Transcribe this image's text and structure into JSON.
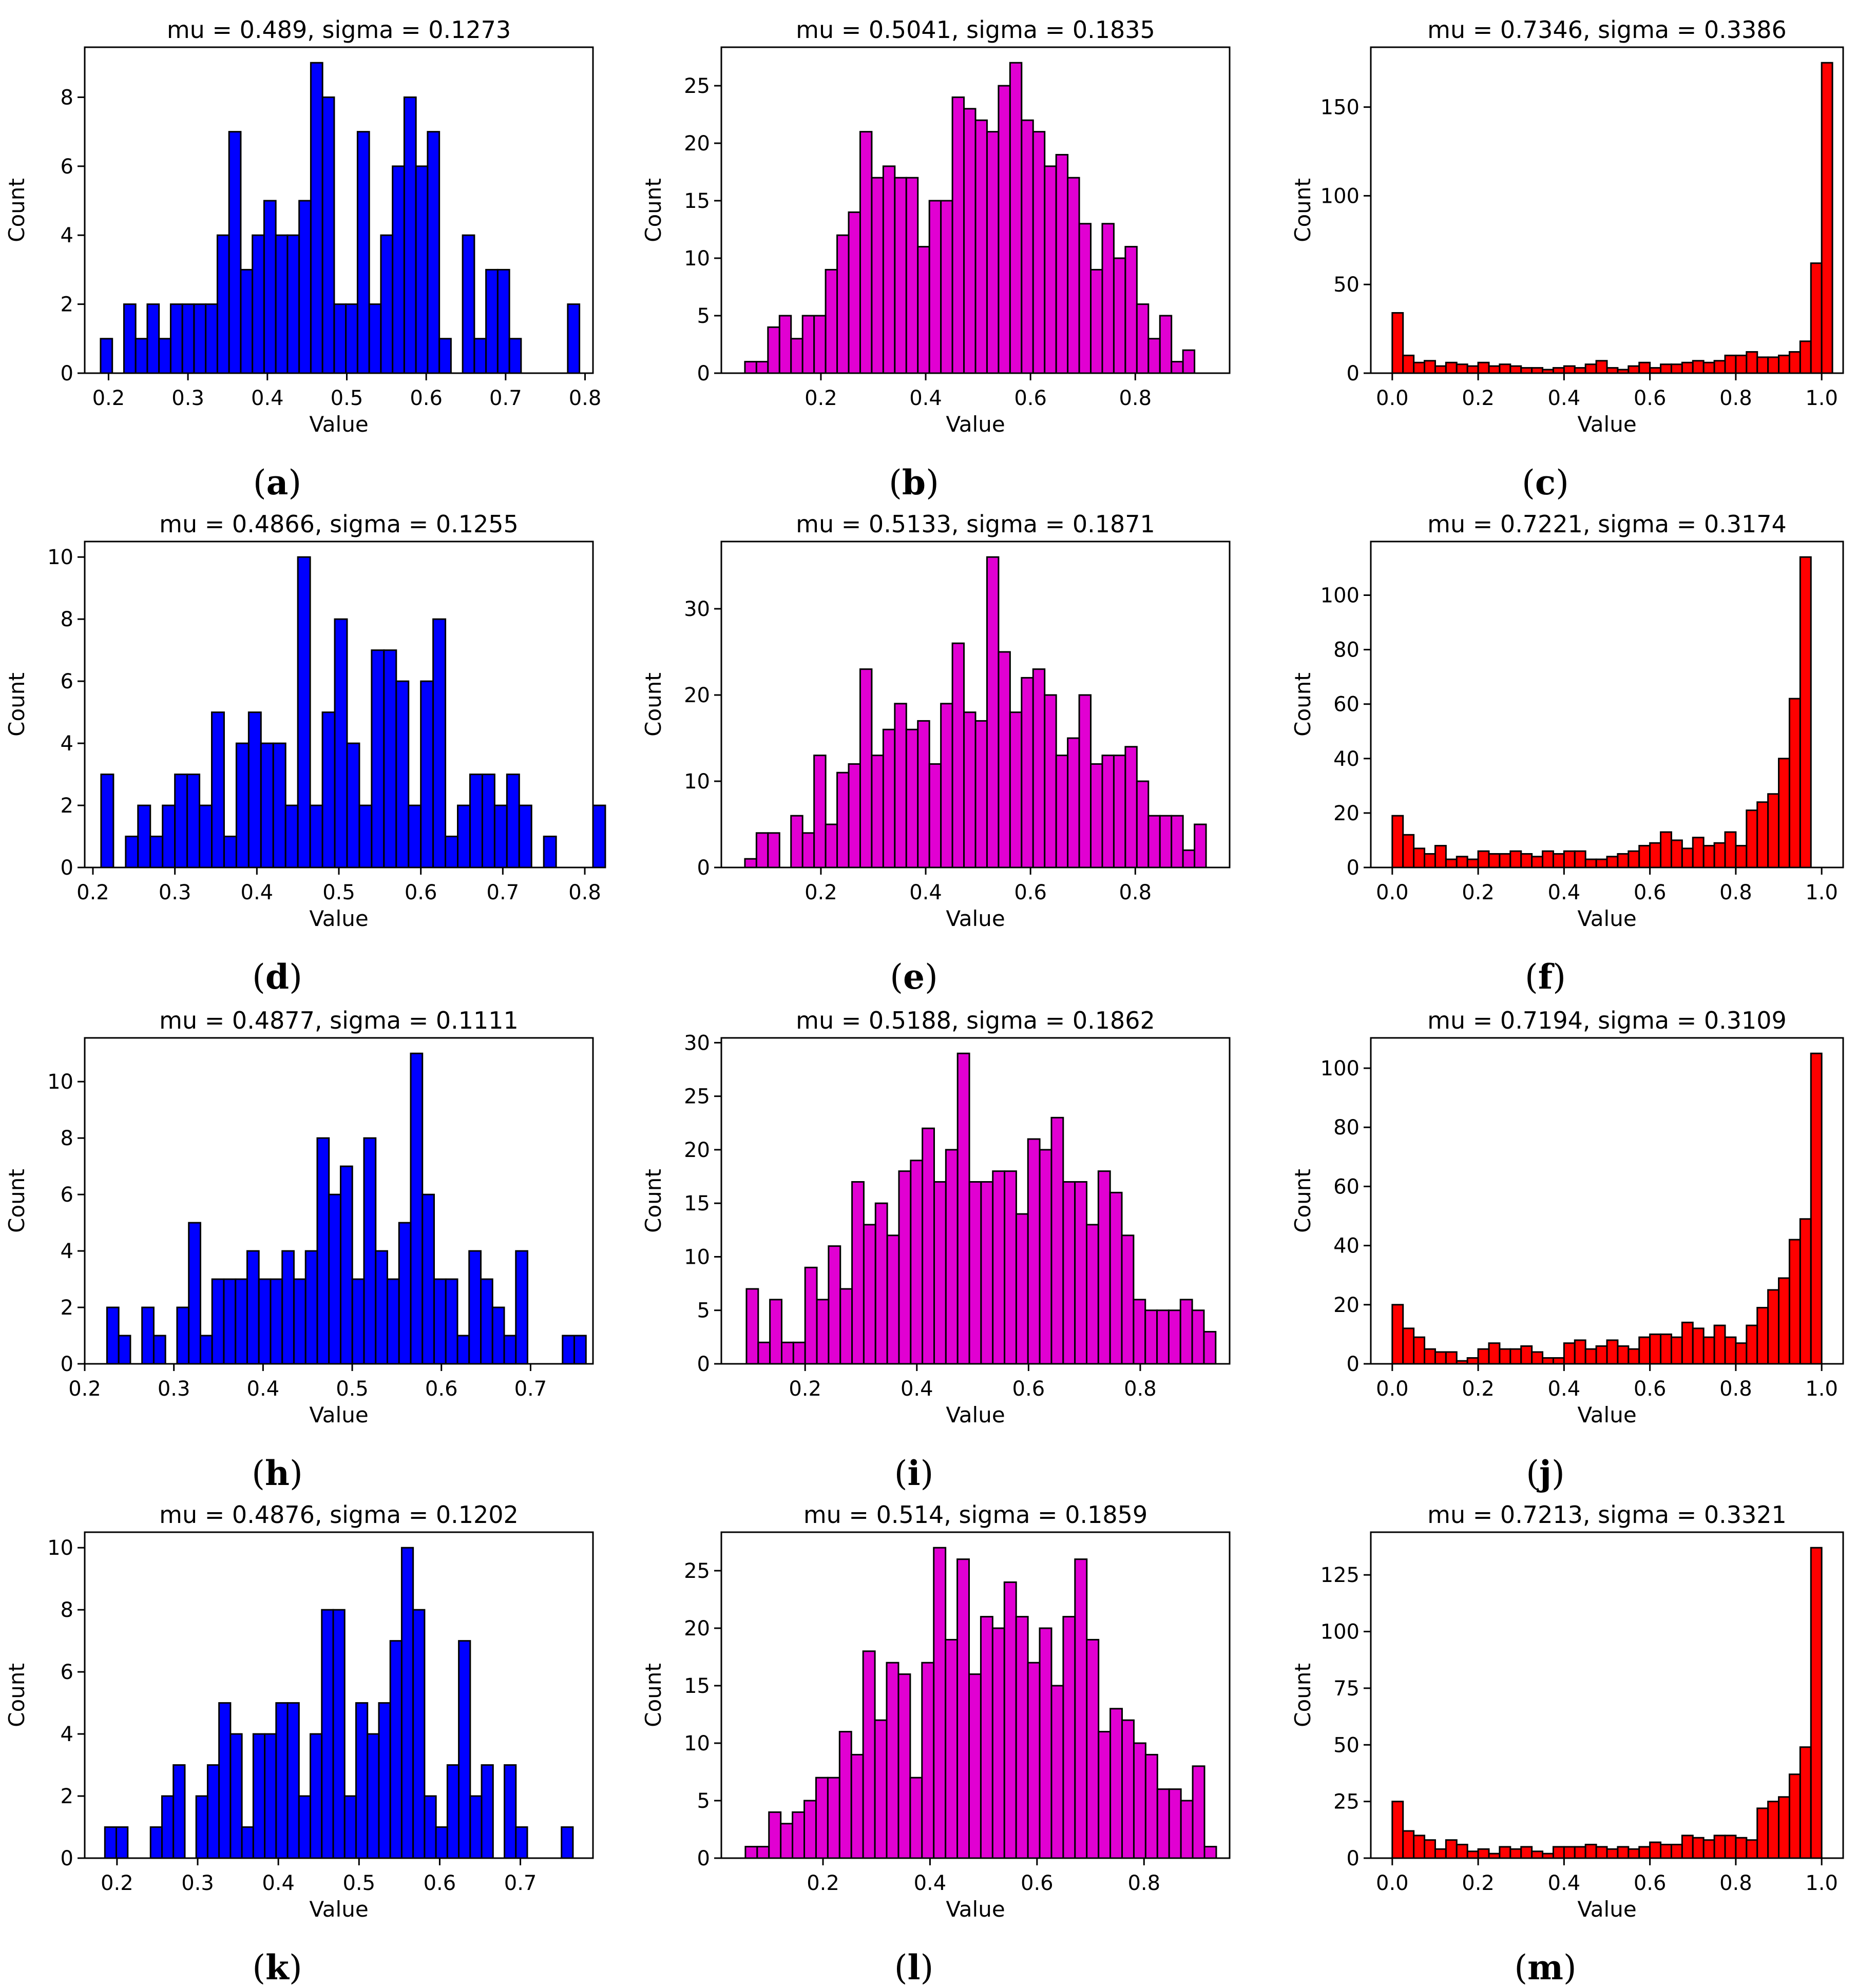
{
  "chart_data": [
    {
      "id": "a",
      "type": "bar",
      "caption_letter": "a",
      "title": "mu = 0.489, sigma = 0.1273",
      "xlabel": "Value",
      "ylabel": "Count",
      "color": "#0000ff",
      "xlim": [
        0.17,
        0.81
      ],
      "ylim": [
        0,
        9.45
      ],
      "bin_start": 0.19,
      "bin_width": 0.014706,
      "xticks": [
        0.2,
        0.3,
        0.4,
        0.5,
        0.6,
        0.7,
        0.8
      ],
      "xtick_labels": [
        "0.2",
        "0.3",
        "0.4",
        "0.5",
        "0.6",
        "0.7",
        "0.8"
      ],
      "yticks": [
        0,
        2,
        4,
        6,
        8
      ],
      "ytick_labels": [
        "0",
        "2",
        "4",
        "6",
        "8"
      ],
      "values": [
        1,
        0,
        2,
        1,
        2,
        1,
        2,
        2,
        2,
        2,
        4,
        7,
        3,
        4,
        5,
        4,
        4,
        5,
        9,
        8,
        2,
        2,
        7,
        2,
        4,
        6,
        8,
        6,
        7,
        1,
        0,
        4,
        1,
        3,
        3,
        1,
        0,
        0,
        0,
        0,
        2
      ]
    },
    {
      "id": "b",
      "type": "bar",
      "caption_letter": "b",
      "title": "mu = 0.5041, sigma = 0.1835",
      "xlabel": "Value",
      "ylabel": "Count",
      "color": "#e100d2",
      "xlim": [
        0.01,
        0.98
      ],
      "ylim": [
        0,
        28.35
      ],
      "bin_start": 0.055,
      "bin_width": 0.022,
      "xticks": [
        0.2,
        0.4,
        0.6,
        0.8
      ],
      "xtick_labels": [
        "0.2",
        "0.4",
        "0.6",
        "0.8"
      ],
      "yticks": [
        0,
        5,
        10,
        15,
        20,
        25
      ],
      "ytick_labels": [
        "0",
        "5",
        "10",
        "15",
        "20",
        "25"
      ],
      "values": [
        1,
        1,
        4,
        5,
        3,
        5,
        5,
        9,
        12,
        14,
        21,
        17,
        18,
        17,
        17,
        11,
        15,
        15,
        24,
        23,
        22,
        21,
        25,
        27,
        22,
        21,
        18,
        19,
        17,
        13,
        9,
        13,
        10,
        11,
        6,
        3,
        5,
        1,
        2
      ]
    },
    {
      "id": "c",
      "type": "bar",
      "caption_letter": "c",
      "title": "mu = 0.7346, sigma = 0.3386",
      "xlabel": "Value",
      "ylabel": "Count",
      "color": "#ff0000",
      "xlim": [
        -0.05,
        1.05
      ],
      "ylim": [
        0,
        183.75
      ],
      "bin_start": 0.0,
      "bin_width": 0.025,
      "xticks": [
        0.0,
        0.2,
        0.4,
        0.6,
        0.8,
        1.0
      ],
      "xtick_labels": [
        "0.0",
        "0.2",
        "0.4",
        "0.6",
        "0.8",
        "1.0"
      ],
      "yticks": [
        0,
        50,
        100,
        150
      ],
      "ytick_labels": [
        "0",
        "50",
        "100",
        "150"
      ],
      "values": [
        34,
        10,
        6,
        7,
        4,
        6,
        5,
        4,
        6,
        4,
        5,
        4,
        3,
        3,
        2,
        3,
        4,
        3,
        5,
        7,
        3,
        2,
        4,
        6,
        3,
        5,
        5,
        6,
        7,
        6,
        7,
        10,
        10,
        12,
        9,
        9,
        10,
        12,
        18,
        62,
        175
      ]
    },
    {
      "id": "d",
      "type": "bar",
      "caption_letter": "d",
      "title": "mu = 0.4866, sigma = 0.1255",
      "xlabel": "Value",
      "ylabel": "Count",
      "color": "#0000ff",
      "xlim": [
        0.19,
        0.81
      ],
      "ylim": [
        0,
        10.5
      ],
      "bin_start": 0.21,
      "bin_width": 0.015,
      "xticks": [
        0.2,
        0.3,
        0.4,
        0.5,
        0.6,
        0.7,
        0.8
      ],
      "xtick_labels": [
        "0.2",
        "0.3",
        "0.4",
        "0.5",
        "0.6",
        "0.7",
        "0.8"
      ],
      "yticks": [
        0,
        2,
        4,
        6,
        8,
        10
      ],
      "ytick_labels": [
        "0",
        "2",
        "4",
        "6",
        "8",
        "10"
      ],
      "values": [
        3,
        0,
        1,
        2,
        1,
        2,
        3,
        3,
        2,
        5,
        1,
        4,
        5,
        4,
        4,
        2,
        10,
        2,
        5,
        8,
        4,
        2,
        7,
        7,
        6,
        2,
        6,
        8,
        1,
        2,
        3,
        3,
        2,
        3,
        2,
        0,
        1,
        0,
        0,
        0,
        2
      ]
    },
    {
      "id": "e",
      "type": "bar",
      "caption_letter": "e",
      "title": "mu = 0.5133, sigma = 0.1871",
      "xlabel": "Value",
      "ylabel": "Count",
      "color": "#e100d2",
      "xlim": [
        0.01,
        0.98
      ],
      "ylim": [
        0,
        37.8
      ],
      "bin_start": 0.055,
      "bin_width": 0.022,
      "xticks": [
        0.2,
        0.4,
        0.6,
        0.8
      ],
      "xtick_labels": [
        "0.2",
        "0.4",
        "0.6",
        "0.8"
      ],
      "yticks": [
        0,
        10,
        20,
        30
      ],
      "ytick_labels": [
        "0",
        "10",
        "20",
        "30"
      ],
      "values": [
        1,
        4,
        4,
        0,
        6,
        4,
        13,
        5,
        11,
        12,
        23,
        13,
        16,
        19,
        16,
        17,
        12,
        19,
        26,
        18,
        17,
        36,
        25,
        18,
        22,
        23,
        20,
        13,
        15,
        20,
        12,
        13,
        13,
        14,
        10,
        6,
        6,
        6,
        2,
        5
      ]
    },
    {
      "id": "f",
      "type": "bar",
      "caption_letter": "f",
      "title": "mu = 0.7221, sigma = 0.3174",
      "xlabel": "Value",
      "ylabel": "Count",
      "color": "#ff0000",
      "xlim": [
        -0.05,
        1.05
      ],
      "ylim": [
        0,
        119.7
      ],
      "bin_start": 0.0,
      "bin_width": 0.025,
      "xticks": [
        0.0,
        0.2,
        0.4,
        0.6,
        0.8,
        1.0
      ],
      "xtick_labels": [
        "0.0",
        "0.2",
        "0.4",
        "0.6",
        "0.8",
        "1.0"
      ],
      "yticks": [
        0,
        20,
        40,
        60,
        80,
        100
      ],
      "ytick_labels": [
        "0",
        "20",
        "40",
        "60",
        "80",
        "100"
      ],
      "values": [
        19,
        12,
        7,
        5,
        8,
        3,
        4,
        3,
        6,
        5,
        5,
        6,
        5,
        4,
        6,
        5,
        6,
        6,
        3,
        3,
        4,
        5,
        6,
        8,
        9,
        13,
        10,
        7,
        11,
        8,
        9,
        13,
        8,
        21,
        24,
        27,
        40,
        62,
        114
      ]
    },
    {
      "id": "h",
      "type": "bar",
      "caption_letter": "h",
      "title": "mu = 0.4877, sigma = 0.1111",
      "xlabel": "Value",
      "ylabel": "Count",
      "color": "#0000ff",
      "xlim": [
        0.2,
        0.77
      ],
      "ylim": [
        0,
        11.55
      ],
      "bin_start": 0.225,
      "bin_width": 0.0131,
      "xticks": [
        0.2,
        0.3,
        0.4,
        0.5,
        0.6,
        0.7
      ],
      "xtick_labels": [
        "0.2",
        "0.3",
        "0.4",
        "0.5",
        "0.6",
        "0.7"
      ],
      "yticks": [
        0,
        2,
        4,
        6,
        8,
        10
      ],
      "ytick_labels": [
        "0",
        "2",
        "4",
        "6",
        "8",
        "10"
      ],
      "values": [
        2,
        1,
        0,
        2,
        1,
        0,
        2,
        5,
        1,
        3,
        3,
        3,
        4,
        3,
        3,
        4,
        3,
        4,
        8,
        6,
        7,
        3,
        8,
        4,
        3,
        5,
        11,
        6,
        3,
        3,
        1,
        4,
        3,
        2,
        1,
        4,
        0,
        0,
        0,
        1,
        1
      ]
    },
    {
      "id": "i",
      "type": "bar",
      "caption_letter": "i",
      "title": "mu = 0.5188, sigma = 0.1862",
      "xlabel": "Value",
      "ylabel": "Count",
      "color": "#e100d2",
      "xlim": [
        0.05,
        0.96
      ],
      "ylim": [
        0,
        30.45
      ],
      "bin_start": 0.095,
      "bin_width": 0.021,
      "xticks": [
        0.2,
        0.4,
        0.6,
        0.8
      ],
      "xtick_labels": [
        "0.2",
        "0.4",
        "0.6",
        "0.8"
      ],
      "yticks": [
        0,
        5,
        10,
        15,
        20,
        25,
        30
      ],
      "ytick_labels": [
        "0",
        "5",
        "10",
        "15",
        "20",
        "25",
        "30"
      ],
      "values": [
        7,
        2,
        6,
        2,
        2,
        9,
        6,
        11,
        7,
        17,
        13,
        15,
        12,
        18,
        19,
        22,
        17,
        20,
        29,
        17,
        17,
        18,
        18,
        14,
        21,
        20,
        23,
        17,
        17,
        13,
        18,
        16,
        12,
        6,
        5,
        5,
        5,
        6,
        5,
        3
      ]
    },
    {
      "id": "j",
      "type": "bar",
      "caption_letter": "j",
      "title": "mu = 0.7194, sigma = 0.3109",
      "xlabel": "Value",
      "ylabel": "Count",
      "color": "#ff0000",
      "xlim": [
        -0.05,
        1.05
      ],
      "ylim": [
        0,
        110.25
      ],
      "bin_start": 0.0,
      "bin_width": 0.025,
      "xticks": [
        0.0,
        0.2,
        0.4,
        0.6,
        0.8,
        1.0
      ],
      "xtick_labels": [
        "0.0",
        "0.2",
        "0.4",
        "0.6",
        "0.8",
        "1.0"
      ],
      "yticks": [
        0,
        20,
        40,
        60,
        80,
        100
      ],
      "ytick_labels": [
        "0",
        "20",
        "40",
        "60",
        "80",
        "100"
      ],
      "values": [
        20,
        12,
        9,
        5,
        4,
        4,
        1,
        2,
        5,
        7,
        5,
        5,
        6,
        4,
        2,
        2,
        7,
        8,
        5,
        6,
        8,
        6,
        5,
        9,
        10,
        10,
        9,
        14,
        12,
        9,
        13,
        9,
        7,
        13,
        19,
        25,
        29,
        42,
        49,
        105
      ]
    },
    {
      "id": "k",
      "type": "bar",
      "caption_letter": "k",
      "title": "mu = 0.4876, sigma = 0.1202",
      "xlabel": "Value",
      "ylabel": "Count",
      "color": "#0000ff",
      "xlim": [
        0.16,
        0.79
      ],
      "ylim": [
        0,
        10.5
      ],
      "bin_start": 0.185,
      "bin_width": 0.01415,
      "xticks": [
        0.2,
        0.3,
        0.4,
        0.5,
        0.6,
        0.7
      ],
      "xtick_labels": [
        "0.2",
        "0.3",
        "0.4",
        "0.5",
        "0.6",
        "0.7"
      ],
      "yticks": [
        0,
        2,
        4,
        6,
        8,
        10
      ],
      "ytick_labels": [
        "0",
        "2",
        "4",
        "6",
        "8",
        "10"
      ],
      "values": [
        1,
        1,
        0,
        0,
        1,
        2,
        3,
        0,
        2,
        3,
        5,
        4,
        1,
        4,
        4,
        5,
        5,
        2,
        4,
        8,
        8,
        2,
        5,
        4,
        5,
        7,
        10,
        8,
        2,
        1,
        3,
        7,
        2,
        3,
        0,
        3,
        1,
        0,
        0,
        0,
        1
      ]
    },
    {
      "id": "l",
      "type": "bar",
      "caption_letter": "l",
      "title": "mu = 0.514, sigma = 0.1859",
      "xlabel": "Value",
      "ylabel": "Count",
      "color": "#e100d2",
      "xlim": [
        0.01,
        0.96
      ],
      "ylim": [
        0,
        28.35
      ],
      "bin_start": 0.055,
      "bin_width": 0.022,
      "xticks": [
        0.2,
        0.4,
        0.6,
        0.8
      ],
      "xtick_labels": [
        "0.2",
        "0.4",
        "0.6",
        "0.8"
      ],
      "yticks": [
        0,
        5,
        10,
        15,
        20,
        25
      ],
      "ytick_labels": [
        "0",
        "5",
        "10",
        "15",
        "20",
        "25"
      ],
      "values": [
        1,
        1,
        4,
        3,
        4,
        5,
        7,
        7,
        11,
        9,
        18,
        12,
        17,
        16,
        7,
        17,
        27,
        19,
        26,
        16,
        21,
        20,
        24,
        21,
        17,
        20,
        15,
        21,
        26,
        19,
        11,
        13,
        12,
        10,
        9,
        6,
        6,
        5,
        8,
        1
      ]
    },
    {
      "id": "m",
      "type": "bar",
      "caption_letter": "m",
      "title": "mu = 0.7213, sigma = 0.3321",
      "xlabel": "Value",
      "ylabel": "Count",
      "color": "#ff0000",
      "xlim": [
        -0.05,
        1.05
      ],
      "ylim": [
        0,
        143.85
      ],
      "bin_start": 0.0,
      "bin_width": 0.025,
      "xticks": [
        0.0,
        0.2,
        0.4,
        0.6,
        0.8,
        1.0
      ],
      "xtick_labels": [
        "0.0",
        "0.2",
        "0.4",
        "0.6",
        "0.8",
        "1.0"
      ],
      "yticks": [
        0,
        25,
        50,
        75,
        100,
        125
      ],
      "ytick_labels": [
        "0",
        "25",
        "50",
        "75",
        "100",
        "125"
      ],
      "values": [
        25,
        12,
        10,
        8,
        4,
        8,
        6,
        3,
        4,
        2,
        5,
        4,
        5,
        3,
        2,
        5,
        5,
        5,
        6,
        5,
        4,
        5,
        4,
        5,
        7,
        6,
        6,
        10,
        9,
        8,
        10,
        10,
        9,
        8,
        22,
        25,
        27,
        37,
        49,
        137
      ]
    }
  ]
}
